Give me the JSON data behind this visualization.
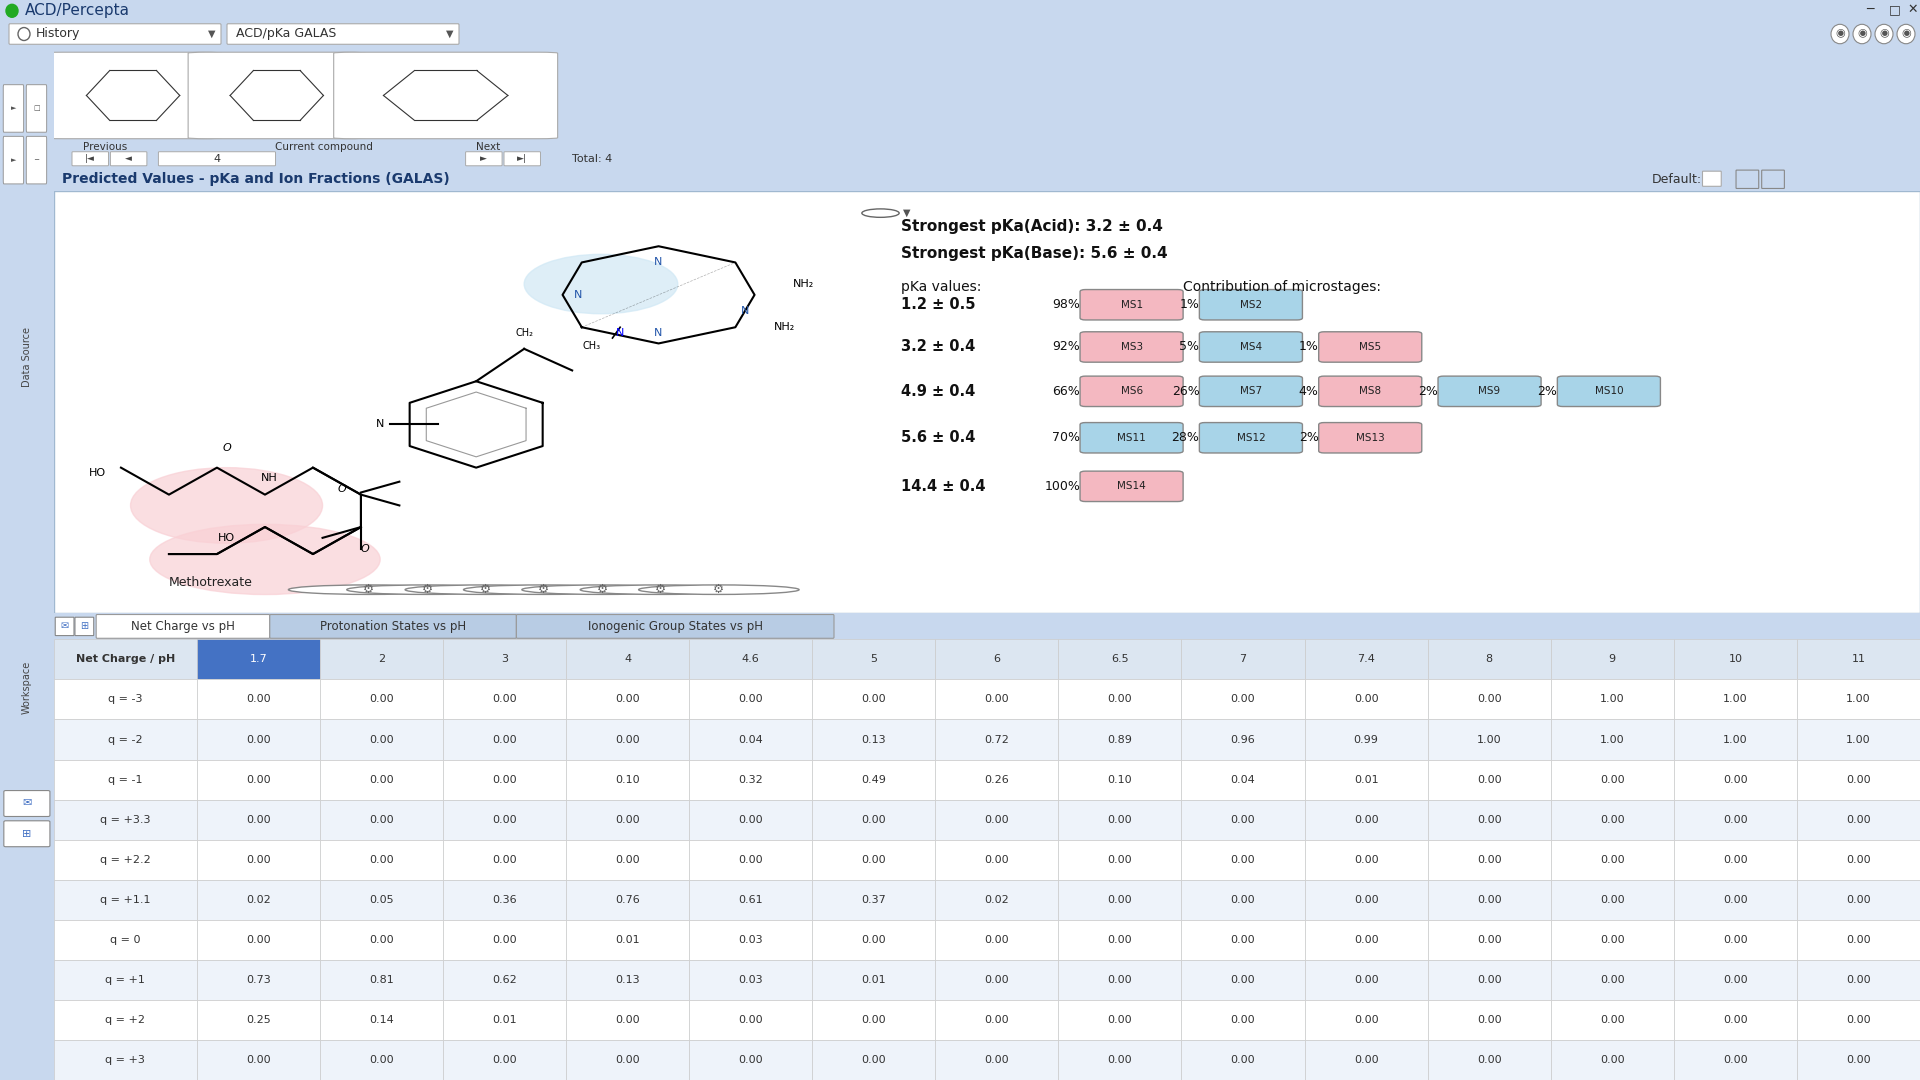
{
  "title": "ACD/Percepta",
  "toolbar_left": "History",
  "toolbar_right": "ACD/pKa GALAS",
  "panel_title": "Predicted Values - pKa and Ion Fractions (GALAS)",
  "compound_name": "Methotrexate",
  "strongest_acid": "Strongest pKa(Acid): 3.2 ± 0.4",
  "strongest_base": "Strongest pKa(Base): 5.6 ± 0.4",
  "pka_label": "pKa values:",
  "contribution_label": "Contribution of microstages:",
  "pka_rows": [
    {
      "pka": "1.2 ± 0.5",
      "pct1": "98%",
      "ms1": "MS1",
      "pct2": "1%",
      "ms2": "MS2",
      "color1": "#f4b8c1",
      "color2": "#a8d4e8"
    },
    {
      "pka": "3.2 ± 0.4",
      "pct1": "92%",
      "ms1": "MS3",
      "pct2": "5%",
      "ms2": "MS4",
      "pct3": "1%",
      "ms3": "MS5",
      "color1": "#f4b8c1",
      "color2": "#a8d4e8",
      "color3": "#f4b8c1"
    },
    {
      "pka": "4.9 ± 0.4",
      "pct1": "66%",
      "ms1": "MS6",
      "pct2": "26%",
      "ms2": "MS7",
      "pct3": "4%",
      "ms3": "MS8",
      "pct4": "2%",
      "ms4": "MS9",
      "pct5": "2%",
      "ms5": "MS10",
      "color1": "#f4b8c1",
      "color2": "#a8d4e8",
      "color3": "#f4b8c1",
      "color4": "#a8d4e8",
      "color5": "#a8d4e8"
    },
    {
      "pka": "5.6 ± 0.4",
      "pct1": "70%",
      "ms1": "MS11",
      "pct2": "28%",
      "ms2": "MS12",
      "pct3": "2%",
      "ms3": "MS13",
      "color1": "#a8d4e8",
      "color2": "#a8d4e8",
      "color3": "#f4b8c1"
    },
    {
      "pka": "14.4 ± 0.4",
      "pct1": "100%",
      "ms1": "MS14",
      "color1": "#f4b8c1"
    }
  ],
  "tabs": [
    "Net Charge vs pH",
    "Protonation States vs pH",
    "Ionogenic Group States vs pH"
  ],
  "active_tab": 0,
  "table_header": [
    "Net Charge / pH",
    "1.7",
    "2",
    "3",
    "4",
    "4.6",
    "5",
    "6",
    "6.5",
    "7",
    "7.4",
    "8",
    "9",
    "10",
    "11"
  ],
  "table_rows": [
    {
      "label": "q = -3",
      "values": [
        "0.00",
        "0.00",
        "0.00",
        "0.00",
        "0.00",
        "0.00",
        "0.00",
        "0.00",
        "0.00",
        "0.00",
        "0.00",
        "1.00",
        "1.00",
        "1.00"
      ]
    },
    {
      "label": "q = -2",
      "values": [
        "0.00",
        "0.00",
        "0.00",
        "0.00",
        "0.04",
        "0.13",
        "0.72",
        "0.89",
        "0.96",
        "0.99",
        "1.00",
        "1.00",
        "1.00",
        "1.00"
      ]
    },
    {
      "label": "q = -1",
      "values": [
        "0.00",
        "0.00",
        "0.00",
        "0.10",
        "0.32",
        "0.49",
        "0.26",
        "0.10",
        "0.04",
        "0.01",
        "0.00",
        "0.00",
        "0.00",
        "0.00"
      ]
    },
    {
      "label": "q = +3.3",
      "values": [
        "0.00",
        "0.00",
        "0.00",
        "0.00",
        "0.00",
        "0.00",
        "0.00",
        "0.00",
        "0.00",
        "0.00",
        "0.00",
        "0.00",
        "0.00",
        "0.00"
      ]
    },
    {
      "label": "q = +2.2",
      "values": [
        "0.00",
        "0.00",
        "0.00",
        "0.00",
        "0.00",
        "0.00",
        "0.00",
        "0.00",
        "0.00",
        "0.00",
        "0.00",
        "0.00",
        "0.00",
        "0.00"
      ]
    },
    {
      "label": "q = +1.1",
      "values": [
        "0.02",
        "0.05",
        "0.36",
        "0.76",
        "0.61",
        "0.37",
        "0.02",
        "0.00",
        "0.00",
        "0.00",
        "0.00",
        "0.00",
        "0.00",
        "0.00"
      ]
    },
    {
      "label": "q = 0",
      "values": [
        "0.00",
        "0.00",
        "0.00",
        "0.01",
        "0.03",
        "0.00",
        "0.00",
        "0.00",
        "0.00",
        "0.00",
        "0.00",
        "0.00",
        "0.00",
        "0.00"
      ]
    },
    {
      "label": "q = +1",
      "values": [
        "0.73",
        "0.81",
        "0.62",
        "0.13",
        "0.03",
        "0.01",
        "0.00",
        "0.00",
        "0.00",
        "0.00",
        "0.00",
        "0.00",
        "0.00",
        "0.00"
      ]
    },
    {
      "label": "q = +2",
      "values": [
        "0.25",
        "0.14",
        "0.01",
        "0.00",
        "0.00",
        "0.00",
        "0.00",
        "0.00",
        "0.00",
        "0.00",
        "0.00",
        "0.00",
        "0.00",
        "0.00"
      ]
    },
    {
      "label": "q = +3",
      "values": [
        "0.00",
        "0.00",
        "0.00",
        "0.00",
        "0.00",
        "0.00",
        "0.00",
        "0.00",
        "0.00",
        "0.00",
        "0.00",
        "0.00",
        "0.00",
        "0.00"
      ]
    }
  ],
  "bg_color": "#c8d8ee",
  "panel_bg": "#dce6f1",
  "white_bg": "#ffffff",
  "titlebar_bg": "#f0f0f0",
  "tab_active_color": "#ffffff",
  "tab_inactive_color": "#b8cce4",
  "header_row_color": "#dce6f1",
  "highlight_cell_color": "#4472c4",
  "highlight_text_color": "#ffffff",
  "row_colors": [
    "#ffffff",
    "#eef3fa"
  ],
  "sidebar_bg": "#c8d8ee",
  "panel_title_bg": "#dce6f1",
  "content_border": "#a0b8d0"
}
